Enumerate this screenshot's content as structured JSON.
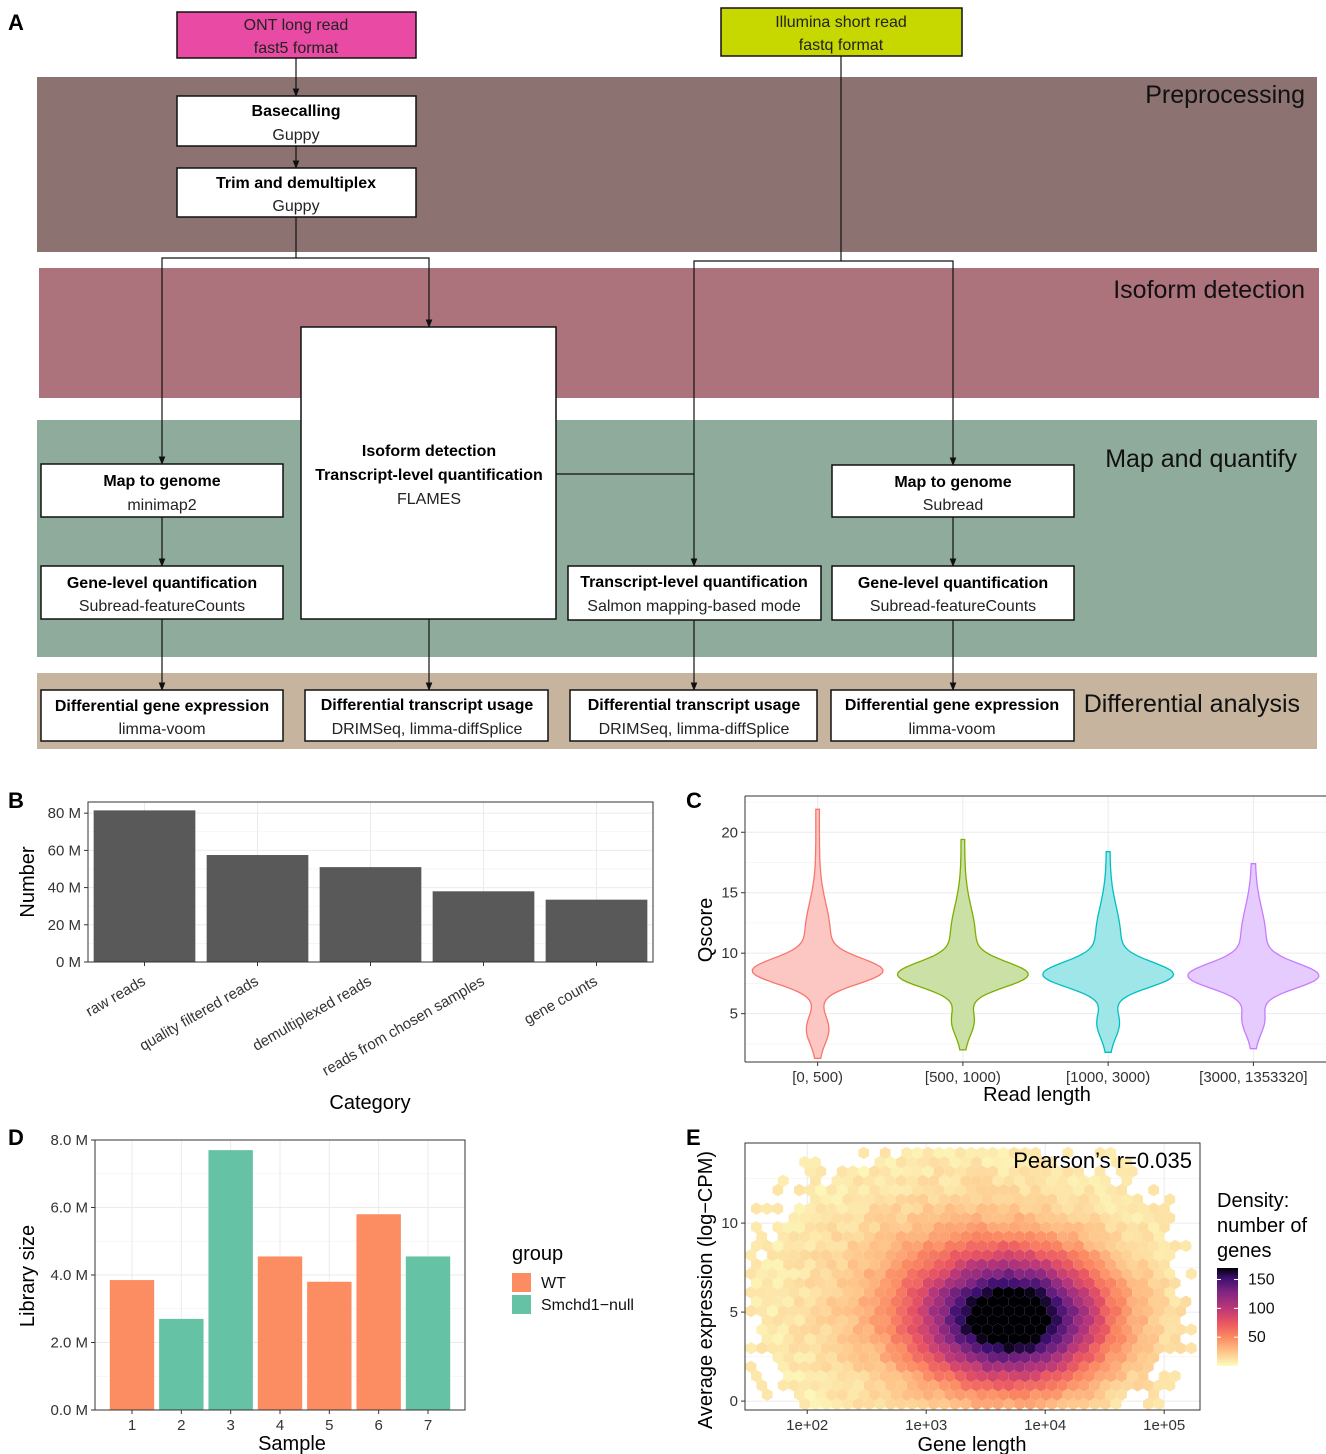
{
  "panelA": {
    "label": "A",
    "bands": [
      "Preprocessing",
      "Isoform detection",
      "Map and quantify",
      "Differential analysis"
    ],
    "inputs": {
      "ont": {
        "line1": "ONT long read",
        "line2": "fast5 format",
        "color": "#e84aa4"
      },
      "illumina": {
        "line1": "Illumina short read",
        "line2": "fastq format",
        "color": "#c6d800"
      }
    },
    "boxes": {
      "basecall": {
        "title": "Basecalling",
        "sub": "Guppy"
      },
      "trim": {
        "title": "Trim and demultiplex",
        "sub": "Guppy"
      },
      "flames": {
        "title1": "Isoform detection",
        "title2": "Transcript-level quantification",
        "sub": "FLAMES"
      },
      "map_long": {
        "title": "Map to genome",
        "sub": "minimap2"
      },
      "gene_long": {
        "title": "Gene-level quantification",
        "sub": "Subread-featureCounts"
      },
      "tx_short": {
        "title": "Transcript-level quantification",
        "sub": "Salmon mapping-based mode"
      },
      "map_short": {
        "title": "Map to genome",
        "sub": "Subread"
      },
      "gene_short": {
        "title": "Gene-level quantification",
        "sub": "Subread-featureCounts"
      },
      "dge_long": {
        "title": "Differential gene expression",
        "sub": "limma-voom"
      },
      "dtu_long": {
        "title": "Differential transcript usage",
        "sub": "DRIMSeq, limma-diffSplice"
      },
      "dtu_short": {
        "title": "Differential transcript usage",
        "sub": "DRIMSeq, limma-diffSplice"
      },
      "dge_short": {
        "title": "Differential gene expression",
        "sub": "limma-voom"
      }
    },
    "colors": {
      "preprocessing": "#8c7372",
      "isoform": "#ad737d",
      "map": "#8fab9b",
      "diff": "#c7b49e"
    }
  },
  "chart_data": [
    {
      "panel": "B",
      "type": "bar",
      "categories": [
        "raw reads",
        "quality filtered reads",
        "demultiplexed reads",
        "reads from chosen samples",
        "gene counts"
      ],
      "values": [
        81.5,
        57.5,
        51,
        38,
        33.5
      ],
      "value_unit": "M",
      "yticks": [
        "0 M",
        "20 M",
        "40 M",
        "60 M",
        "80 M"
      ],
      "ylim": [
        0,
        86
      ],
      "xlabel": "Category",
      "ylabel": "Number",
      "bar_color": "#595959"
    },
    {
      "panel": "C",
      "type": "violin",
      "categories": [
        "[0, 500)",
        "[500, 1000)",
        "[1000, 3000)",
        "[3000, 1353320]"
      ],
      "colors": [
        "#f8766d",
        "#7cae00",
        "#00bfc4",
        "#c77cff"
      ],
      "fills": [
        "#fcc7c3",
        "#cbe0a5",
        "#9fe6e8",
        "#e6cbff"
      ],
      "ranges": [
        [
          1.3,
          21.9
        ],
        [
          2.0,
          19.4
        ],
        [
          1.8,
          18.4
        ],
        [
          2.1,
          17.4
        ]
      ],
      "modes": [
        8.5,
        8.2,
        8.2,
        8.1
      ],
      "yticks": [
        5,
        10,
        15,
        20
      ],
      "ylim": [
        1,
        23
      ],
      "xlabel": "Read length",
      "ylabel": "Qscore"
    },
    {
      "panel": "D",
      "type": "bar",
      "categories": [
        "1",
        "2",
        "3",
        "4",
        "5",
        "6",
        "7"
      ],
      "values": [
        3.85,
        2.7,
        7.7,
        4.55,
        3.8,
        5.8,
        4.55
      ],
      "groups": [
        "WT",
        "Smchd1−null",
        "Smchd1−null",
        "WT",
        "WT",
        "WT",
        "Smchd1−null"
      ],
      "value_unit": "M",
      "yticks": [
        "0.0 M",
        "2.0 M",
        "4.0 M",
        "6.0 M",
        "8.0 M"
      ],
      "ylim": [
        0,
        8.0
      ],
      "xlabel": "Sample",
      "ylabel": "Library size",
      "legend": {
        "title": "group",
        "entries": [
          "WT",
          "Smchd1−null"
        ],
        "colors": [
          "#fc8d62",
          "#66c2a5"
        ],
        "position": "right"
      }
    },
    {
      "panel": "E",
      "type": "heatmap",
      "subtype": "hexbin",
      "annotation": "Pearson’s r=0.035",
      "x_scale": "log10",
      "xticks": [
        "1e+02",
        "1e+03",
        "1e+04",
        "1e+05"
      ],
      "yticks": [
        "0",
        "5",
        "10"
      ],
      "xlim": [
        30,
        200000
      ],
      "ylim": [
        -0.5,
        14.5
      ],
      "center": {
        "x": 5500,
        "y": 4.6
      },
      "xlabel": "Gene length",
      "ylabel": "Average expression (log−CPM)",
      "legend": {
        "title_lines": [
          "Density:",
          "number of",
          "genes"
        ],
        "ticks": [
          50,
          100,
          150
        ],
        "max": 170,
        "position": "right"
      }
    }
  ]
}
